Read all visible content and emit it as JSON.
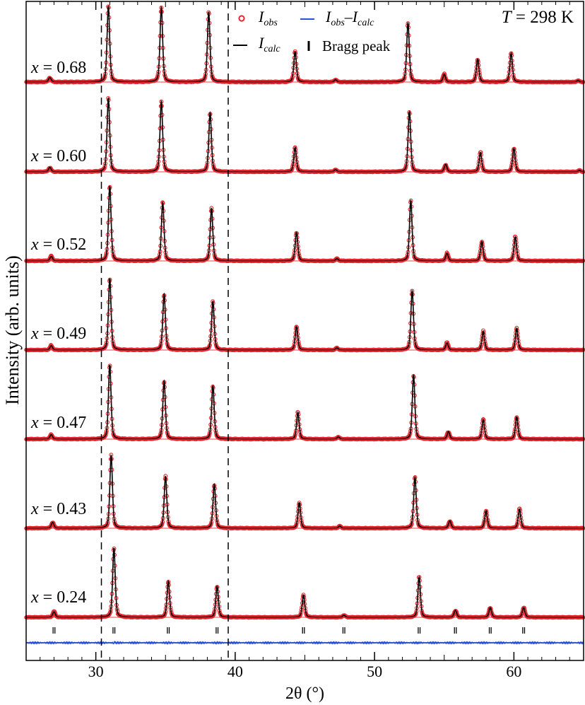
{
  "chart_data": {
    "type": "line",
    "xlabel": "2θ (°)",
    "ylabel": "Intensity (arb. units)",
    "xlim": [
      25,
      65
    ],
    "x_ticks": [
      30,
      40,
      50,
      60
    ],
    "x_tick_labels": [
      "30",
      "40",
      "50",
      "60"
    ],
    "temperature_label": {
      "var": "T",
      "text": " = 298 K"
    },
    "legend": {
      "placement": "top",
      "entries": [
        {
          "key": "obs",
          "main": "I",
          "sub": "obs",
          "color": "#e8262d",
          "marker": "circle"
        },
        {
          "key": "diff",
          "main": "I",
          "sub": "obs",
          "minus": "–",
          "main2": "I",
          "sub2": "calc",
          "color": "#2a4fd8",
          "marker": "line"
        },
        {
          "key": "calc",
          "main": "I",
          "sub": "calc",
          "color": "#000000",
          "marker": "line"
        },
        {
          "key": "bragg",
          "text": "Bragg peak",
          "color": "#000000",
          "marker": "tick"
        }
      ]
    },
    "dashed_lines_x": [
      30.4,
      39.5
    ],
    "series": [
      {
        "label_var": "x",
        "label_value": " = 0.68",
        "shift": 0.0,
        "peaks": [
          [
            26.7,
            0.06
          ],
          [
            30.9,
            1.0
          ],
          [
            34.7,
            0.99
          ],
          [
            38.1,
            0.92
          ],
          [
            44.3,
            0.4
          ],
          [
            47.2,
            0.03
          ],
          [
            52.4,
            0.78
          ],
          [
            55.0,
            0.1
          ],
          [
            57.4,
            0.3
          ],
          [
            59.8,
            0.38
          ],
          [
            64.6,
            0.02
          ]
        ]
      },
      {
        "label_var": "x",
        "label_value": " = 0.60",
        "shift": 0.05,
        "peaks": [
          [
            26.7,
            0.06
          ],
          [
            30.9,
            1.0
          ],
          [
            34.7,
            0.96
          ],
          [
            38.2,
            0.8
          ],
          [
            44.3,
            0.33
          ],
          [
            47.2,
            0.03
          ],
          [
            52.5,
            0.82
          ],
          [
            55.1,
            0.1
          ],
          [
            57.6,
            0.26
          ],
          [
            60.0,
            0.32
          ],
          [
            64.7,
            0.02
          ]
        ]
      },
      {
        "label_var": "x",
        "label_value": " = 0.52",
        "shift": 0.1,
        "peaks": [
          [
            26.8,
            0.06
          ],
          [
            31.0,
            1.0
          ],
          [
            34.8,
            0.78
          ],
          [
            38.3,
            0.7
          ],
          [
            44.4,
            0.38
          ],
          [
            47.3,
            0.03
          ],
          [
            52.6,
            0.8
          ],
          [
            55.2,
            0.1
          ],
          [
            57.7,
            0.26
          ],
          [
            60.1,
            0.32
          ]
        ]
      },
      {
        "label_var": "x",
        "label_value": " = 0.49",
        "shift": 0.15,
        "peaks": [
          [
            26.8,
            0.06
          ],
          [
            31.0,
            1.0
          ],
          [
            34.9,
            0.78
          ],
          [
            38.4,
            0.68
          ],
          [
            44.4,
            0.33
          ],
          [
            47.3,
            0.03
          ],
          [
            52.7,
            0.83
          ],
          [
            55.2,
            0.1
          ],
          [
            57.8,
            0.26
          ],
          [
            60.2,
            0.3
          ]
        ]
      },
      {
        "label_var": "x",
        "label_value": " = 0.47",
        "shift": 0.2,
        "peaks": [
          [
            26.8,
            0.06
          ],
          [
            31.0,
            1.0
          ],
          [
            34.9,
            0.78
          ],
          [
            38.4,
            0.72
          ],
          [
            44.5,
            0.36
          ],
          [
            47.4,
            0.03
          ],
          [
            52.8,
            0.86
          ],
          [
            55.3,
            0.1
          ],
          [
            57.8,
            0.26
          ],
          [
            60.2,
            0.3
          ]
        ]
      },
      {
        "label_var": "x",
        "label_value": " = 0.43",
        "shift": 0.25,
        "peaks": [
          [
            26.9,
            0.08
          ],
          [
            31.1,
            1.0
          ],
          [
            35.0,
            0.71
          ],
          [
            38.5,
            0.6
          ],
          [
            44.6,
            0.35
          ],
          [
            47.5,
            0.03
          ],
          [
            52.9,
            0.7
          ],
          [
            55.4,
            0.1
          ],
          [
            58.0,
            0.24
          ],
          [
            60.4,
            0.26
          ]
        ]
      },
      {
        "label_var": "x",
        "label_value": " = 0.24",
        "shift": 0.35,
        "peaks": [
          [
            27.0,
            0.08
          ],
          [
            31.3,
            1.0
          ],
          [
            35.2,
            0.52
          ],
          [
            38.7,
            0.45
          ],
          [
            44.9,
            0.32
          ],
          [
            47.8,
            0.03
          ],
          [
            53.2,
            0.58
          ],
          [
            55.8,
            0.1
          ],
          [
            58.3,
            0.14
          ],
          [
            60.7,
            0.14
          ]
        ]
      }
    ],
    "bragg_peaks": [
      27.0,
      31.3,
      35.2,
      38.7,
      44.9,
      47.8,
      53.2,
      55.8,
      58.3,
      60.7
    ],
    "difference_curve": {
      "color": "#2a4fd8"
    }
  }
}
